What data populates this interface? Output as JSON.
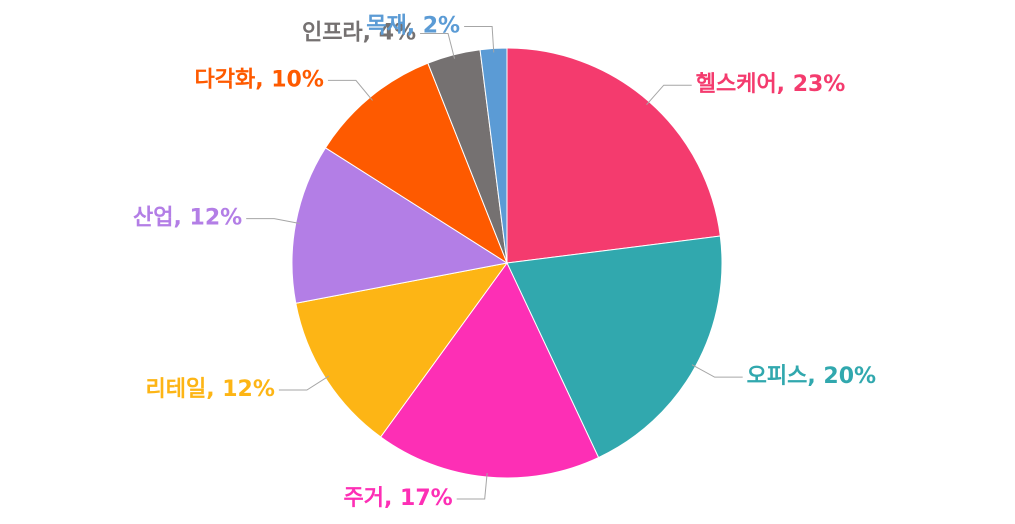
{
  "chart_data": {
    "type": "pie",
    "labels": [
      "헬스케어, 23%",
      "오피스, 20%",
      "주거, 17%",
      "리테일, 12%",
      "산업, 12%",
      "다각화, 10%",
      "인프라, 4%",
      "목재, 2%"
    ],
    "values": [
      23,
      20,
      17,
      12,
      12,
      10,
      4,
      2
    ],
    "colors": [
      "#f43b6e",
      "#31a8ae",
      "#fd2fb5",
      "#fdb515",
      "#b37ee6",
      "#fe5a00",
      "#757171",
      "#5b9bd5"
    ]
  }
}
